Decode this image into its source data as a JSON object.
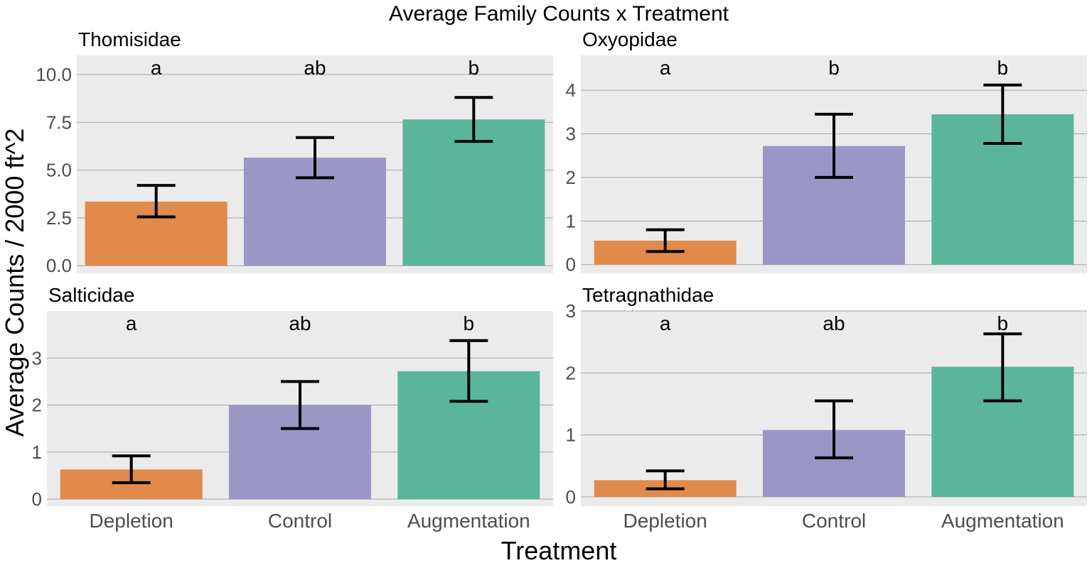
{
  "chart_data": {
    "type": "bar",
    "title": "Average Family Counts x Treatment",
    "xlabel": "Treatment",
    "ylabel": "Average Counts / 2000 ft^2",
    "categories": [
      "Depletion",
      "Control",
      "Augmentation"
    ],
    "colors": [
      "#e08a4b",
      "#9a96c6",
      "#5bb59a"
    ],
    "grid": true,
    "legend": "none",
    "facets": [
      {
        "name": "Thomisidae",
        "values": [
          3.35,
          5.65,
          7.65
        ],
        "error_low": [
          2.55,
          4.6,
          6.5
        ],
        "error_high": [
          4.2,
          6.7,
          8.8
        ],
        "significance": [
          "a",
          "ab",
          "b"
        ],
        "ylim": [
          -0.4,
          11.0
        ],
        "yticks": [
          0,
          2.5,
          5,
          7.5,
          10
        ],
        "ytick_labels": [
          "0.0",
          "2.5",
          "5.0",
          "7.5",
          "10.0"
        ]
      },
      {
        "name": "Oxyopidae",
        "values": [
          0.55,
          2.72,
          3.45
        ],
        "error_low": [
          0.3,
          2.0,
          2.78
        ],
        "error_high": [
          0.8,
          3.45,
          4.12
        ],
        "significance": [
          "a",
          "b",
          "b"
        ],
        "ylim": [
          -0.2,
          4.8
        ],
        "yticks": [
          0,
          1,
          2,
          3,
          4
        ],
        "ytick_labels": [
          "0",
          "1",
          "2",
          "3",
          "4"
        ]
      },
      {
        "name": "Salticidae",
        "values": [
          0.63,
          2.0,
          2.72
        ],
        "error_low": [
          0.35,
          1.5,
          2.08
        ],
        "error_high": [
          0.92,
          2.5,
          3.37
        ],
        "significance": [
          "a",
          "ab",
          "b"
        ],
        "ylim": [
          -0.15,
          4.0
        ],
        "yticks": [
          0,
          1,
          2,
          3
        ],
        "ytick_labels": [
          "0",
          "1",
          "2",
          "3"
        ]
      },
      {
        "name": "Tetragnathidae",
        "values": [
          0.27,
          1.08,
          2.1
        ],
        "error_low": [
          0.13,
          0.63,
          1.55
        ],
        "error_high": [
          0.42,
          1.55,
          2.63
        ],
        "significance": [
          "a",
          "ab",
          "b"
        ],
        "ylim": [
          -0.15,
          3.0
        ],
        "yticks": [
          0,
          1,
          2,
          3
        ],
        "ytick_labels": [
          "0",
          "1",
          "2",
          "3"
        ]
      }
    ]
  }
}
